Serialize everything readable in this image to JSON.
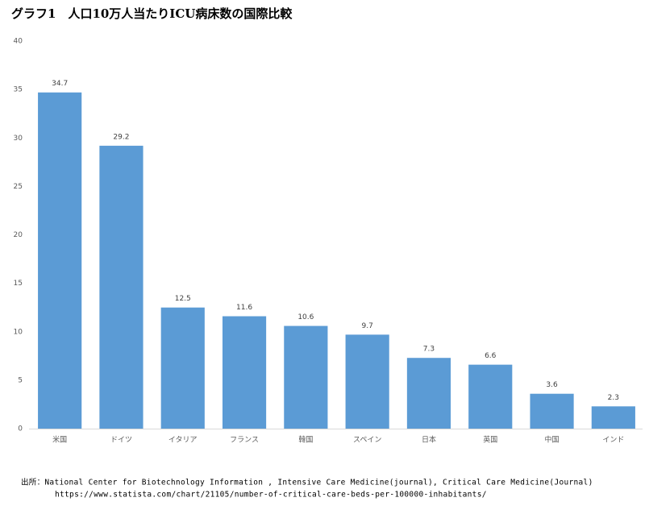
{
  "chart_data": {
    "type": "bar",
    "title": "グラフ1　人口10万人当たりICU病床数の国際比較",
    "categories": [
      "米国",
      "ドイツ",
      "イタリア",
      "フランス",
      "韓国",
      "スペイン",
      "日本",
      "英国",
      "中国",
      "インド"
    ],
    "values": [
      34.7,
      29.2,
      12.5,
      11.6,
      10.6,
      9.7,
      7.3,
      6.6,
      3.6,
      2.3
    ],
    "color": "#5b9bd5",
    "ylim": [
      0,
      40
    ],
    "yticks": [
      0,
      5,
      10,
      15,
      20,
      25,
      30,
      35,
      40
    ],
    "grid": false,
    "source": [
      "出所：National Center for Biotechnology Information , Intensive Care Medicine(journal), Critical Care Medicine(Journal)",
      "https://www.statista.com/chart/21105/number-of-critical-care-beds-per-100000-inhabitants/"
    ]
  }
}
